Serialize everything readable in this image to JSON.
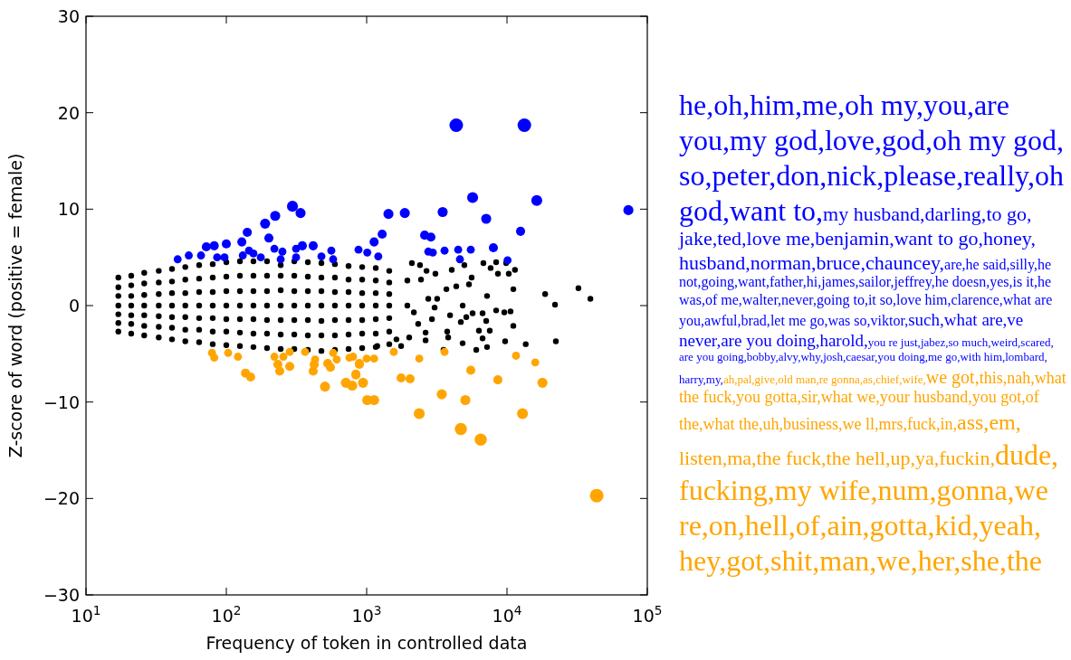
{
  "chart_data": {
    "type": "scatter",
    "xlabel": "Frequency of token in controlled data",
    "ylabel": "Z-score of word (positive = female)",
    "log": "x",
    "xlim": [
      10,
      100000
    ],
    "ylim": [
      -30,
      30
    ],
    "xticks": [
      {
        "value": 10,
        "label": "10$^{1}$"
      },
      {
        "value": 100,
        "label": "10$^{2}$"
      },
      {
        "value": 1000,
        "label": "10$^{3}$"
      },
      {
        "value": 10000,
        "label": "10$^{4}$"
      },
      {
        "value": 100000,
        "label": "10$^{5}$"
      }
    ],
    "yticks": [
      -30,
      -20,
      -10,
      0,
      10,
      20,
      30
    ],
    "grid": false,
    "marker": "circle",
    "series": [
      {
        "color": "#000000",
        "x": [
          17,
          17,
          17,
          17,
          17,
          17,
          17,
          21,
          21,
          21,
          21,
          21,
          21,
          21,
          26,
          26,
          26,
          26,
          26,
          26,
          26,
          33,
          33,
          33,
          33,
          33,
          33,
          33,
          41,
          41,
          41,
          41,
          41,
          41,
          41,
          51,
          51,
          51,
          51,
          51,
          51,
          51,
          64,
          64,
          64,
          64,
          64,
          64,
          64,
          80,
          80,
          80,
          80,
          80,
          80,
          80,
          100,
          100,
          100,
          100,
          100,
          100,
          100,
          125,
          125,
          125,
          125,
          125,
          125,
          125,
          156,
          156,
          156,
          156,
          156,
          156,
          156,
          195,
          195,
          195,
          195,
          195,
          195,
          195,
          244,
          244,
          244,
          244,
          244,
          244,
          244,
          305,
          305,
          305,
          305,
          305,
          305,
          305,
          381,
          381,
          381,
          381,
          381,
          381,
          381,
          476,
          476,
          476,
          476,
          476,
          476,
          476,
          594,
          594,
          594,
          594,
          594,
          594,
          594,
          743,
          743,
          743,
          743,
          743,
          743,
          743,
          929,
          929,
          929,
          929,
          929,
          929,
          929,
          1161,
          1161,
          1161,
          1161,
          1161,
          1161,
          1161,
          1449,
          1449,
          1449,
          1449,
          1449,
          1449,
          1449,
          2100,
          2400,
          2670,
          3090,
          4040,
          4970,
          5600,
          6790,
          7650,
          8370,
          8620,
          9860,
          10300,
          11400,
          11100,
          18700,
          22000,
          32300,
          39300,
          22300,
          13600,
          9700,
          11100,
          10600,
          9570,
          8370,
          7210,
          7110,
          6700,
          6310,
          6700,
          7540,
          7210,
          6040,
          4830,
          4690,
          5130,
          4830,
          5690,
          4350,
          5360,
          3700,
          3930,
          3810,
          3750,
          3530,
          3180,
          3050,
          2920,
          2630,
          2630,
          2330,
          2170,
          1950,
          2010,
          1760,
          1630,
          1190,
          2750,
          2440,
          1950
        ],
        "values": [
          2.9,
          1.9,
          1.0,
          0,
          -0.9,
          -1.8,
          -2.7,
          3.1,
          2.1,
          1.0,
          0,
          -1.0,
          -1.9,
          -2.9,
          3.4,
          2.3,
          1.1,
          0,
          -1.0,
          -2.1,
          -3.1,
          3.6,
          2.4,
          1.2,
          0,
          -1.1,
          -2.2,
          -3.3,
          3.8,
          2.5,
          1.3,
          0,
          -1.2,
          -2.3,
          -3.5,
          4.0,
          2.7,
          1.3,
          0,
          -1.2,
          -2.5,
          -3.7,
          4.2,
          2.8,
          1.4,
          0,
          -1.3,
          -2.5,
          -3.8,
          4.3,
          2.9,
          1.4,
          0,
          -1.3,
          -2.7,
          -4.0,
          4.5,
          3.0,
          1.5,
          0,
          -1.4,
          -2.7,
          -4.1,
          4.6,
          3.1,
          1.5,
          0,
          -1.4,
          -2.8,
          -4.2,
          4.6,
          3.1,
          1.5,
          0,
          -1.4,
          -2.9,
          -4.3,
          4.6,
          3.1,
          1.5,
          0,
          -1.5,
          -2.9,
          -4.4,
          4.2,
          3.1,
          1.6,
          0,
          -1.5,
          -3.0,
          -4.5,
          4.6,
          3.1,
          1.5,
          0,
          -1.5,
          -3.0,
          -4.5,
          4.5,
          3.0,
          1.5,
          0,
          -1.5,
          -3.1,
          -4.6,
          4.4,
          2.9,
          1.5,
          0,
          -1.6,
          -3.1,
          -4.7,
          4.3,
          2.9,
          1.4,
          0,
          -1.5,
          -3.1,
          -4.6,
          4.1,
          2.7,
          1.4,
          0,
          -1.5,
          -3.0,
          -4.5,
          4.0,
          2.7,
          1.3,
          0,
          -1.5,
          -2.9,
          -4.4,
          3.9,
          2.6,
          1.3,
          0,
          -1.4,
          -2.9,
          -4.3,
          3.6,
          2.4,
          1.2,
          0,
          -1.3,
          -2.7,
          -4.0,
          4.4,
          4.2,
          3.6,
          3.3,
          3.7,
          4.2,
          2.9,
          4.4,
          3.9,
          4.5,
          3.3,
          4.4,
          3.3,
          3.7,
          1.7,
          1.2,
          0.1,
          1.8,
          0.7,
          -3.7,
          -4.0,
          -3.7,
          -2.1,
          -0.6,
          -0.7,
          -0.5,
          1.0,
          -1.6,
          -0.8,
          -2.6,
          -3.4,
          -2.6,
          -4.3,
          -4.6,
          -3.9,
          -1.7,
          -1.2,
          0.0,
          -0.8,
          2.0,
          2.2,
          1.7,
          -1.0,
          -3.3,
          -2.7,
          -4.6,
          0.7,
          -0.2,
          -1.4,
          -2.8,
          -3.6,
          -1.9,
          -0.7,
          0.0,
          -3.3,
          -4.2,
          -3.5,
          -4.2,
          0.7,
          2.7,
          2.6
        ]
      },
      {
        "type": "bubble",
        "color": "#0000ff",
        "sizes": [
          0.35,
          0.35,
          0.35,
          0.45,
          0.45,
          0.45,
          0.35,
          0.35,
          0.45,
          0.45,
          0.35,
          0.35,
          0.35,
          0.35,
          0.55,
          0.55,
          0.45,
          0.35,
          0.35,
          0.35,
          0.65,
          0.55,
          0.35,
          0.45,
          0.35,
          0.45,
          0.35,
          0.35,
          0.35,
          0.35,
          1,
          1,
          0.65,
          0.65,
          0.55,
          0.55,
          0.55,
          0.55,
          0.55,
          0.45,
          0.45,
          0.45,
          0.45,
          0.45,
          0.35,
          0.35,
          0.35,
          0.35,
          0.35,
          0.35,
          0.35,
          0.45,
          0.35,
          0.35
        ],
        "x": [
          45,
          54,
          66,
          72,
          82,
          100,
          86,
          97,
          129,
          141,
          145,
          156,
          131,
          176,
          189,
          223,
          201,
          220,
          251,
          244,
          296,
          338,
          314,
          348,
          314,
          416,
          476,
          560,
          577,
          875,
          4350,
          13300,
          5690,
          16300,
          73300,
          1430,
          1870,
          3480,
          7110,
          12500,
          1290,
          2590,
          2870,
          1130,
          1010,
          1210,
          2750,
          2960,
          3590,
          4490,
          5520,
          8000,
          4620,
          10100
        ],
        "values": [
          4.8,
          5.2,
          5.2,
          6.1,
          6.2,
          6.4,
          5.0,
          5.0,
          6.6,
          7.6,
          5.7,
          5.4,
          5.2,
          5.0,
          8.5,
          9.3,
          7.0,
          5.9,
          5.6,
          4.8,
          10.3,
          9.6,
          5.9,
          6.2,
          5.0,
          6.2,
          5.1,
          5.7,
          4.8,
          5.8,
          18.7,
          18.7,
          11.2,
          10.9,
          9.9,
          9.5,
          9.6,
          9.7,
          9.0,
          7.7,
          7.4,
          7.3,
          7.1,
          6.6,
          5.5,
          5.1,
          5.6,
          5.5,
          5.7,
          5.8,
          5.8,
          6.0,
          4.8,
          4.7
        ]
      },
      {
        "type": "bubble",
        "color": "#ffa500",
        "sizes": [
          0.35,
          0.35,
          0.35,
          0.35,
          0.45,
          0.45,
          0.35,
          0.35,
          0.35,
          0.45,
          0.45,
          0.45,
          0.35,
          0.35,
          0.45,
          0.45,
          0.45,
          0.45,
          0.55,
          0.35,
          0.35,
          0.35,
          0.45,
          0.45,
          0.55,
          0.55,
          0.35,
          0.45,
          0.35,
          0.35,
          0.45,
          0.55,
          0.55,
          0.55,
          0.35,
          0.45,
          0.45,
          0.35,
          0.65,
          0.55,
          0.35,
          0.55,
          0.45,
          0.8,
          0.8,
          0.45,
          0.35,
          0.35,
          0.65,
          0.55,
          1
        ],
        "x": [
          79,
          82,
          103,
          121,
          137,
          149,
          220,
          255,
          283,
          233,
          240,
          283,
          364,
          429,
          423,
          416,
          528,
          552,
          505,
          577,
          612,
          754,
          887,
          838,
          711,
          789,
          800,
          887,
          1000,
          1130,
          838,
          942,
          1010,
          1130,
          1560,
          1760,
          2040,
          2370,
          2370,
          3430,
          3590,
          5050,
          5520,
          4690,
          6500,
          8610,
          11600,
          15900,
          12900,
          17900,
          43600
        ],
        "values": [
          -4.9,
          -5.4,
          -4.9,
          -5.3,
          -7.0,
          -7.4,
          -5.3,
          -5.3,
          -4.8,
          -6.1,
          -6.8,
          -6.3,
          -4.8,
          -5.6,
          -6.1,
          -6.8,
          -6.0,
          -6.4,
          -8.4,
          -4.9,
          -5.6,
          -5.4,
          -6.1,
          -7.1,
          -8.0,
          -8.3,
          -5.3,
          -6.0,
          -5.5,
          -5.5,
          -7.2,
          -8.0,
          -9.8,
          -9.8,
          -4.8,
          -7.5,
          -7.6,
          -5.5,
          -11.2,
          -9.2,
          -4.8,
          -9.8,
          -6.7,
          -12.8,
          -13.9,
          -7.7,
          -5.2,
          -5.9,
          -11.2,
          -8.0,
          -19.7
        ]
      }
    ],
    "annotations": [
      "he,oh,him,me,oh my,you,are you,my god,love,god,oh my god,so,peter,don,nick,please,really,oh god,want to,my husband,darling,to go,jake,ted,love me,benjamin,want to go,honey,husband,norman,bruce,chauncey,are,he said,silly,he not,going,want,father,hi,james,sailor,jeffrey,he doesn,yes,is it,he was,of me,walter,never,going to,it so,love him,clarence,what are you,awful,brad,let me go,was so,viktor,such,what are,ve never,are you doing,harold,you re just,jabez,so much,weird,scared,are you going,bobby,alvy,why,josh,caesar,you doing,me go,with him,lombard,harry,my,",
      "ah,pal,give,old man,re gonna,as,chief,wife,we got,this,nah,what the fuck,you gotta,sir,what we,your husband,you got,of the,what the,uh,business,we ll,mrs,fuck,in,ass,em,listen,ma,the fuck,the hell,up,ya,fuckin,dude,fucking,my wife,num,gonna,we re,on,hell,of,ain,gotta,kid,yeah,hey,got,shit,man,we,her,she,the"
    ]
  }
}
